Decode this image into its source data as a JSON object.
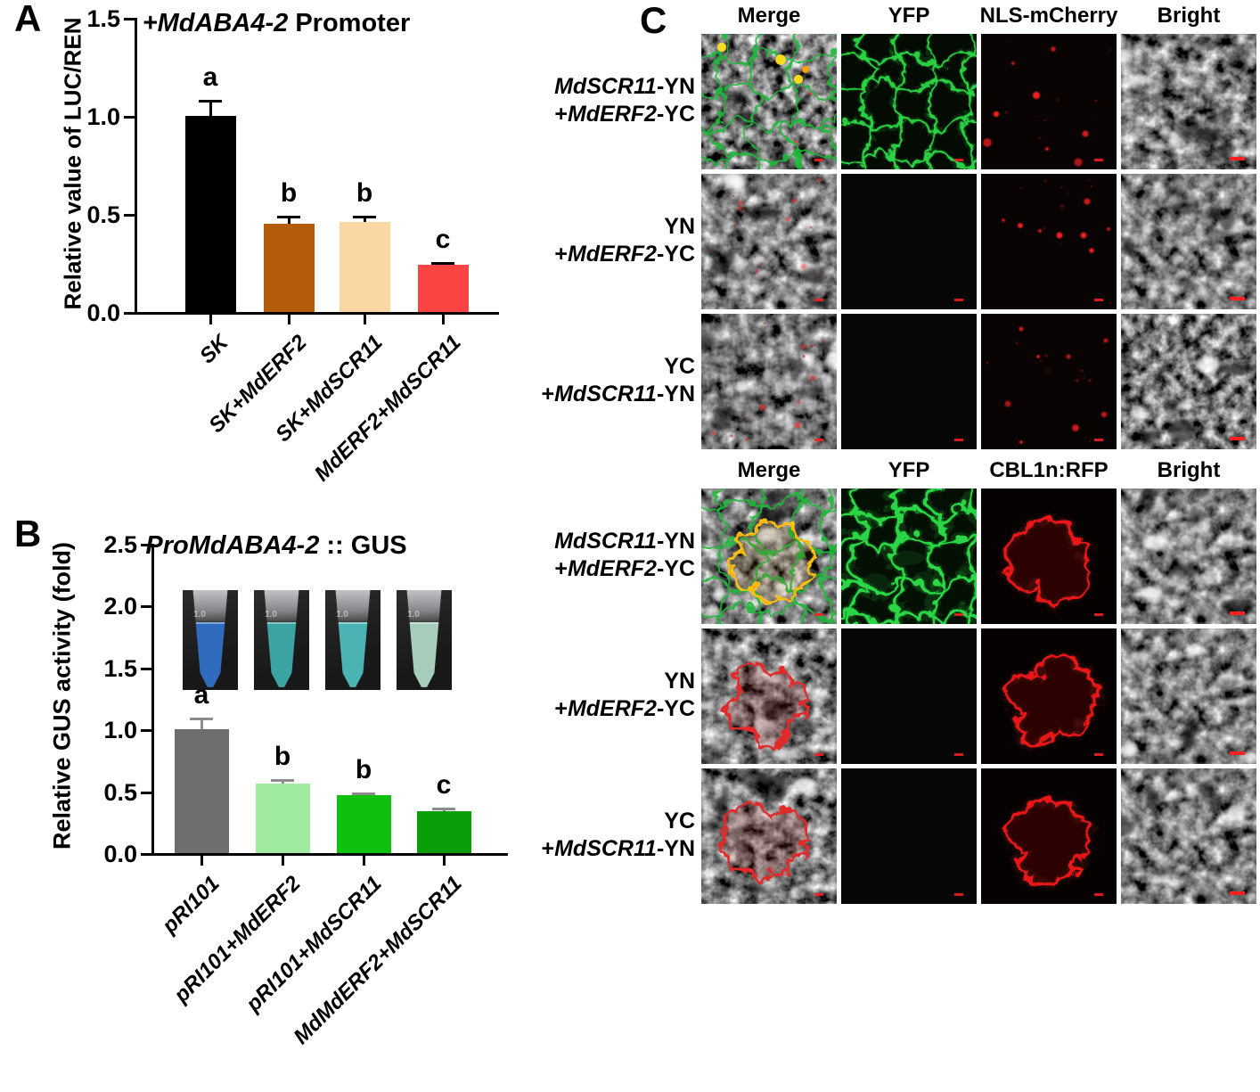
{
  "panels": {
    "A": {
      "label": "A",
      "title_parts": [
        {
          "t": "+MdABA4-2",
          "i": 1
        },
        {
          "t": " Promoter",
          "i": 0
        }
      ]
    },
    "B": {
      "label": "B",
      "title_parts": [
        {
          "t": "ProMdABA4-2",
          "i": 1
        },
        {
          "t": " :: GUS",
          "i": 0
        }
      ],
      "tubes": {
        "graduation_label": "1.0",
        "photo_background": "#181818",
        "liquid_colors": [
          "#2f6cbe",
          "#3ba4a2",
          "#4cb3b5",
          "#a5cdb9"
        ]
      }
    },
    "C": {
      "label": "C",
      "scalebar_color": "#ff2020",
      "palette": {
        "yfp_green": "#2bd644",
        "merge_green": "#1fb83a",
        "mcherry_red": "#ff2323",
        "rfp_red": "#e81515",
        "bifc_yellow": "#ffd21e",
        "bifc_orange": "#ff9e00"
      },
      "blocks": [
        {
          "headers": [
            "Merge",
            "YFP",
            "NLS-mCherry",
            "Bright"
          ],
          "rows": [
            {
              "label_lines": [
                [
                  {
                    "t": "MdSCR11",
                    "i": 1
                  },
                  {
                    "t": "-YN",
                    "i": 0
                  }
                ],
                [
                  {
                    "t": "+",
                    "i": 0
                  },
                  {
                    "t": "MdERF2",
                    "i": 1
                  },
                  {
                    "t": "-YC",
                    "i": 0
                  }
                ]
              ],
              "tiles": [
                "merge-green",
                "yfp-cells",
                "red-dots",
                "bright"
              ]
            },
            {
              "label_lines": [
                [
                  {
                    "t": "YN",
                    "i": 0
                  }
                ],
                [
                  {
                    "t": "+",
                    "i": 0
                  },
                  {
                    "t": "MdERF2",
                    "i": 1
                  },
                  {
                    "t": "-YC",
                    "i": 0
                  }
                ]
              ],
              "tiles": [
                "merge-dots",
                "dark",
                "red-dots",
                "bright"
              ]
            },
            {
              "label_lines": [
                [
                  {
                    "t": "YC",
                    "i": 0
                  }
                ],
                [
                  {
                    "t": "+",
                    "i": 0
                  },
                  {
                    "t": "MdSCR11",
                    "i": 1
                  },
                  {
                    "t": "-YN",
                    "i": 0
                  }
                ]
              ],
              "tiles": [
                "merge-dots",
                "dark",
                "red-dots",
                "bright"
              ]
            }
          ]
        },
        {
          "headers": [
            "Merge",
            "YFP",
            "CBL1n:RFP",
            "Bright"
          ],
          "rows": [
            {
              "label_lines": [
                [
                  {
                    "t": "MdSCR11",
                    "i": 1
                  },
                  {
                    "t": "-YN",
                    "i": 0
                  }
                ],
                [
                  {
                    "t": "+",
                    "i": 0
                  },
                  {
                    "t": "MdERF2",
                    "i": 1
                  },
                  {
                    "t": "-YC",
                    "i": 0
                  }
                ]
              ],
              "tiles": [
                "merge-bifc",
                "yfp-cells-bright",
                "rfp-cell",
                "bright"
              ]
            },
            {
              "label_lines": [
                [
                  {
                    "t": "YN",
                    "i": 0
                  }
                ],
                [
                  {
                    "t": "+",
                    "i": 0
                  },
                  {
                    "t": "MdERF2",
                    "i": 1
                  },
                  {
                    "t": "-YC",
                    "i": 0
                  }
                ]
              ],
              "tiles": [
                "merge-red-cell",
                "dark",
                "rfp-cell",
                "bright"
              ]
            },
            {
              "label_lines": [
                [
                  {
                    "t": "YC",
                    "i": 0
                  }
                ],
                [
                  {
                    "t": "+",
                    "i": 0
                  },
                  {
                    "t": "MdSCR11",
                    "i": 1
                  },
                  {
                    "t": "-YN",
                    "i": 0
                  }
                ]
              ],
              "tiles": [
                "merge-red-cell",
                "dark",
                "rfp-cell",
                "bright"
              ]
            }
          ]
        }
      ]
    }
  },
  "chart_data": [
    {
      "panel": "A",
      "type": "bar",
      "title": "+MdABA4-2 Promoter",
      "ylabel": "Relative value of LUC/REN",
      "ylim": [
        0,
        1.5
      ],
      "yticks": [
        "0.0",
        "0.5",
        "1.0",
        "1.5"
      ],
      "categories": [
        "SK",
        "SK+MdERF2",
        "SK+MdSCR11",
        "MdERF2+MdSCR11"
      ],
      "values": [
        1.0,
        0.45,
        0.46,
        0.24
      ],
      "errors": [
        0.08,
        0.04,
        0.03,
        0.015
      ],
      "sig_letters": [
        "a",
        "b",
        "b",
        "c"
      ],
      "bar_colors": [
        "#000000",
        "#b35c09",
        "#fbd8a3",
        "#fb4444"
      ],
      "error_color": "#000000",
      "grid": false,
      "legend": null
    },
    {
      "panel": "B",
      "type": "bar",
      "title": "ProMdABA4-2 :: GUS",
      "ylabel": "Relative GUS activity (fold)",
      "ylim": [
        0,
        2.5
      ],
      "yticks": [
        "0.0",
        "0.5",
        "1.0",
        "1.5",
        "2.0",
        "2.5"
      ],
      "categories": [
        "pRI101",
        "pRI101+MdERF2",
        "pRI101+MdSCR11",
        "MdMdERF2+MdSCR11"
      ],
      "values": [
        1.0,
        0.56,
        0.47,
        0.34
      ],
      "errors": [
        0.09,
        0.04,
        0.02,
        0.03
      ],
      "sig_letters": [
        "a",
        "b",
        "b",
        "c"
      ],
      "bar_colors": [
        "#6e6e6e",
        "#a0eba0",
        "#0fc00f",
        "#0b9e0b"
      ],
      "error_color": "#8c8c8c",
      "grid": false,
      "legend": null
    }
  ]
}
